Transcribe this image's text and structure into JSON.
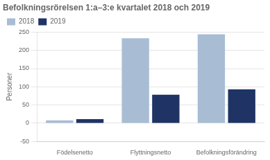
{
  "chart_data": {
    "type": "bar",
    "title": "Befolkningsrörelsen 1:a–3:e kvartalet 2018 och 2019",
    "ylabel": "Personer",
    "categories": [
      "Födelsenetto",
      "Flyttningsnetto",
      "Befolkningsförändring"
    ],
    "series": [
      {
        "name": "2018",
        "color": "#a8bdd4",
        "values": [
          8,
          233,
          244
        ]
      },
      {
        "name": "2019",
        "color": "#1f3464",
        "values": [
          11,
          78,
          93
        ]
      }
    ],
    "ylim": [
      -50,
      250
    ],
    "yticks": [
      -50,
      0,
      50,
      100,
      150,
      200,
      250
    ],
    "grid": true,
    "legend": "upper left"
  }
}
